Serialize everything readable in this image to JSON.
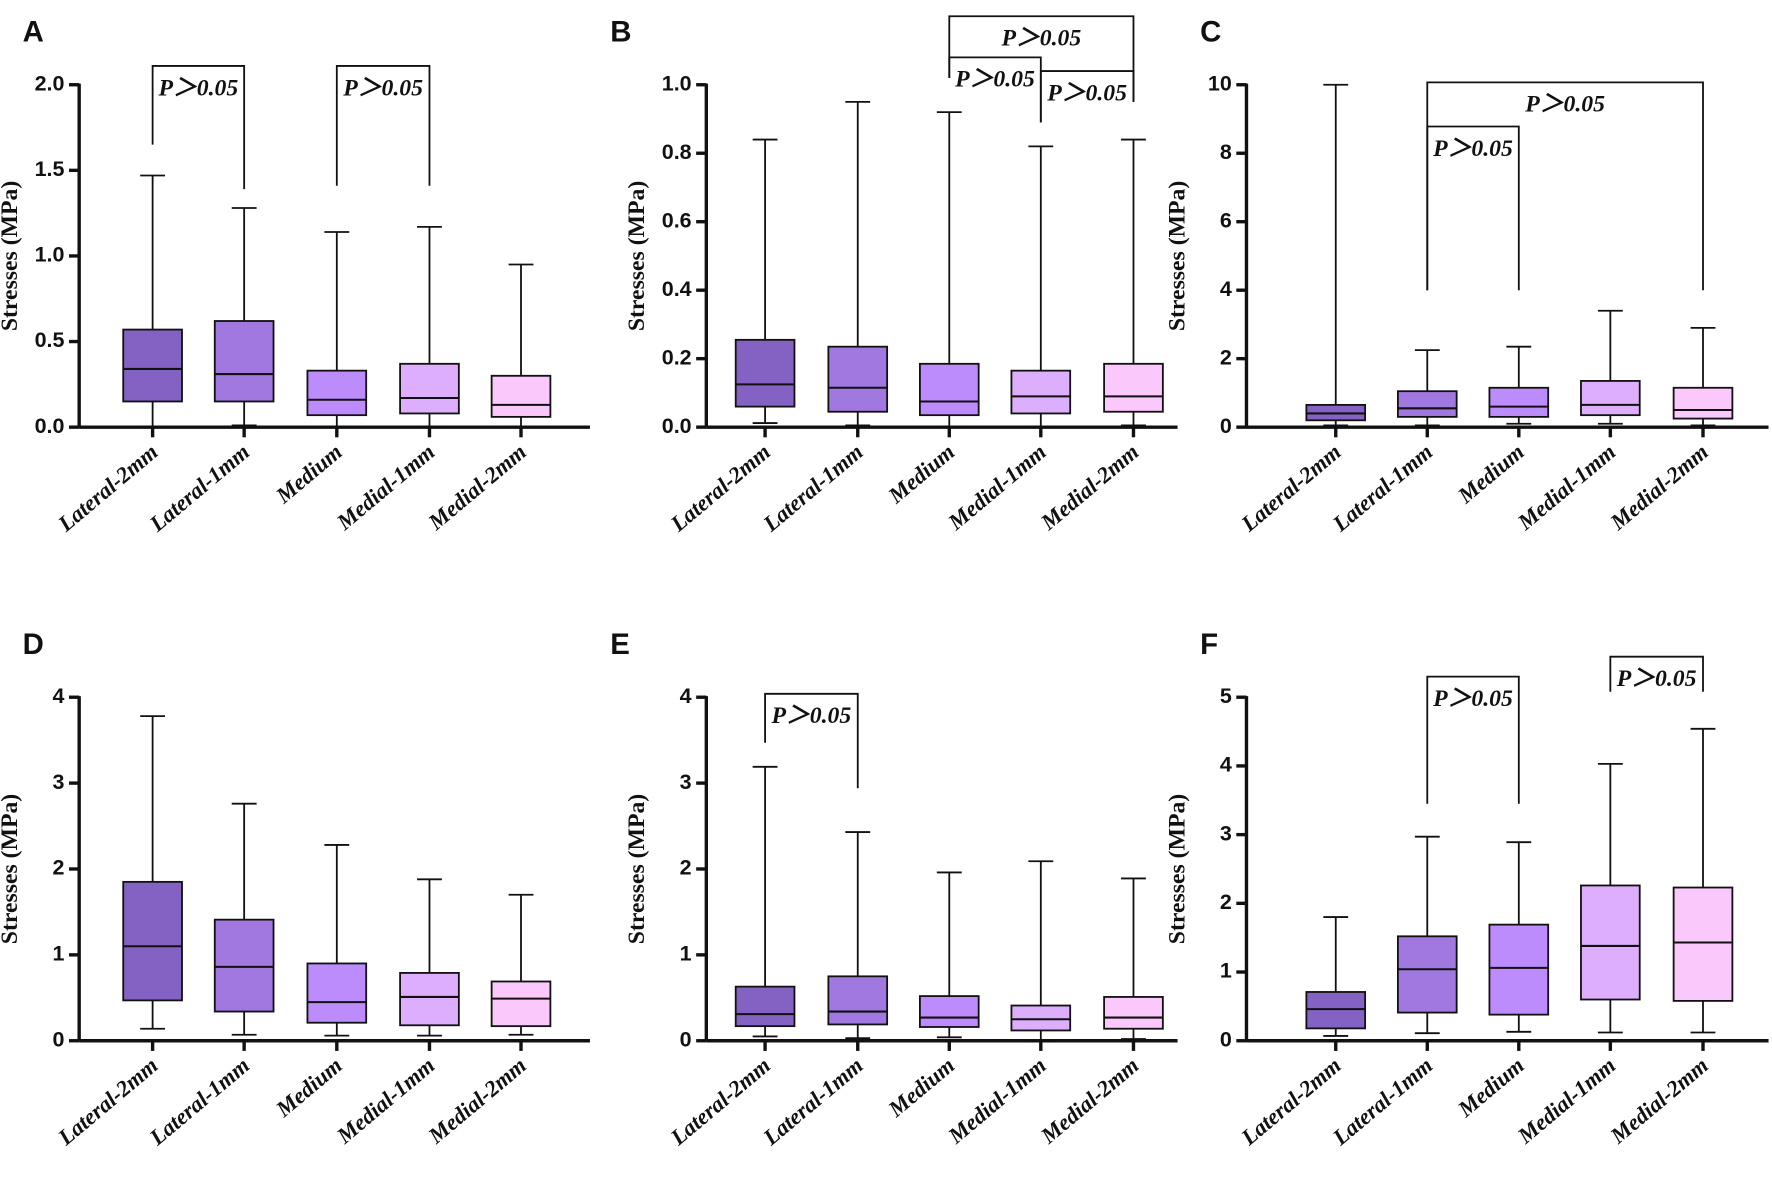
{
  "colors": [
    "#8462c4",
    "#a078e0",
    "#bd8cfc",
    "#dcaefc",
    "#fbc8fb"
  ],
  "chart_data": [
    {
      "type": "box",
      "panel": "A",
      "ylabel": "Stresses (MPa)",
      "ylim": [
        0,
        2.0
      ],
      "ticks": [
        "0.0",
        "0.5",
        "1.0",
        "1.5",
        "2.0"
      ],
      "tick_values": [
        0,
        0.5,
        1,
        1.5,
        2
      ],
      "categories": [
        "Lateral-2mm",
        "Lateral-1mm",
        "Medium",
        "Medial-1mm",
        "Medial-2mm"
      ],
      "boxes": [
        {
          "min": 0.0,
          "q1": 0.15,
          "median": 0.34,
          "q3": 0.57,
          "max": 1.47
        },
        {
          "min": 0.01,
          "q1": 0.15,
          "median": 0.31,
          "q3": 0.62,
          "max": 1.28
        },
        {
          "min": 0.0,
          "q1": 0.07,
          "median": 0.16,
          "q3": 0.33,
          "max": 1.14
        },
        {
          "min": 0.0,
          "q1": 0.08,
          "median": 0.17,
          "q3": 0.37,
          "max": 1.17
        },
        {
          "min": 0.0,
          "q1": 0.06,
          "median": 0.13,
          "q3": 0.3,
          "max": 0.95
        }
      ],
      "brackets": [
        {
          "from": 0,
          "to": 1,
          "label": "P＞0.05",
          "top": 2.11,
          "left_end": 1.65,
          "right_end": 1.39
        },
        {
          "from": 2,
          "to": 3,
          "label": "P＞0.05",
          "top": 2.11,
          "left_end": 1.41,
          "right_end": 1.41
        }
      ]
    },
    {
      "type": "box",
      "panel": "B",
      "ylabel": "Stresses (MPa)",
      "ylim": [
        0,
        1.0
      ],
      "ticks": [
        "0.0",
        "0.2",
        "0.4",
        "0.6",
        "0.8",
        "1.0"
      ],
      "tick_values": [
        0,
        0.2,
        0.4,
        0.6,
        0.8,
        1.0
      ],
      "categories": [
        "Lateral-2mm",
        "Lateral-1mm",
        "Medium",
        "Medial-1mm",
        "Medial-2mm"
      ],
      "boxes": [
        {
          "min": 0.012,
          "q1": 0.06,
          "median": 0.125,
          "q3": 0.255,
          "max": 0.84
        },
        {
          "min": 0.005,
          "q1": 0.045,
          "median": 0.115,
          "q3": 0.235,
          "max": 0.95
        },
        {
          "min": 0.0,
          "q1": 0.035,
          "median": 0.075,
          "q3": 0.185,
          "max": 0.92
        },
        {
          "min": 0.0,
          "q1": 0.04,
          "median": 0.09,
          "q3": 0.165,
          "max": 0.82
        },
        {
          "min": 0.005,
          "q1": 0.045,
          "median": 0.09,
          "q3": 0.185,
          "max": 0.84
        }
      ],
      "brackets": [
        {
          "from": 2,
          "to": 4,
          "label": "P＞0.05",
          "top": 1.2,
          "left_end": 1.02,
          "right_end": 0.95
        },
        {
          "from": 2,
          "to": 3,
          "label": "P＞0.05",
          "top": 1.08,
          "left_end": 1.02,
          "right_end": 0.89
        },
        {
          "from": 3,
          "to": 4,
          "label": "P＞0.05",
          "top": 1.04,
          "left_end": 0.89,
          "right_end": 0.95
        }
      ]
    },
    {
      "type": "box",
      "panel": "C",
      "ylabel": "Stresses (MPa)",
      "ylim": [
        0,
        10
      ],
      "ticks": [
        "0",
        "2",
        "4",
        "6",
        "8",
        "10"
      ],
      "tick_values": [
        0,
        2,
        4,
        6,
        8,
        10
      ],
      "categories": [
        "Lateral-2mm",
        "Lateral-1mm",
        "Medium",
        "Medial-1mm",
        "Medial-2mm"
      ],
      "boxes": [
        {
          "min": 0.05,
          "q1": 0.2,
          "median": 0.4,
          "q3": 0.65,
          "max": 10.0
        },
        {
          "min": 0.05,
          "q1": 0.3,
          "median": 0.55,
          "q3": 1.05,
          "max": 2.25
        },
        {
          "min": 0.1,
          "q1": 0.3,
          "median": 0.6,
          "q3": 1.15,
          "max": 2.35
        },
        {
          "min": 0.1,
          "q1": 0.35,
          "median": 0.65,
          "q3": 1.35,
          "max": 3.4
        },
        {
          "min": 0.05,
          "q1": 0.25,
          "median": 0.5,
          "q3": 1.15,
          "max": 2.9
        }
      ],
      "brackets": [
        {
          "from": 1,
          "to": 4,
          "label": "P＞0.05",
          "top": 10.07,
          "left_end": 4.0,
          "right_end": 4.0
        },
        {
          "from": 1,
          "to": 2,
          "label": "P＞0.05",
          "top": 8.78,
          "left_end": 4.0,
          "right_end": 4.0
        }
      ]
    },
    {
      "type": "box",
      "panel": "D",
      "ylabel": "Stresses (MPa)",
      "ylim": [
        0,
        4
      ],
      "ticks": [
        "0",
        "1",
        "2",
        "3",
        "4"
      ],
      "tick_values": [
        0,
        1,
        2,
        3,
        4
      ],
      "categories": [
        "Lateral-2mm",
        "Lateral-1mm",
        "Medium",
        "Medial-1mm",
        "Medial-2mm"
      ],
      "boxes": [
        {
          "min": 0.14,
          "q1": 0.47,
          "median": 1.1,
          "q3": 1.85,
          "max": 3.78
        },
        {
          "min": 0.07,
          "q1": 0.34,
          "median": 0.86,
          "q3": 1.41,
          "max": 2.76
        },
        {
          "min": 0.06,
          "q1": 0.21,
          "median": 0.45,
          "q3": 0.9,
          "max": 2.28
        },
        {
          "min": 0.06,
          "q1": 0.18,
          "median": 0.51,
          "q3": 0.79,
          "max": 1.88
        },
        {
          "min": 0.07,
          "q1": 0.17,
          "median": 0.49,
          "q3": 0.69,
          "max": 1.7
        }
      ],
      "brackets": []
    },
    {
      "type": "box",
      "panel": "E",
      "ylabel": "Stresses (MPa)",
      "ylim": [
        0,
        4
      ],
      "ticks": [
        "0",
        "1",
        "2",
        "3",
        "4"
      ],
      "tick_values": [
        0,
        1,
        2,
        3,
        4
      ],
      "categories": [
        "Lateral-2mm",
        "Lateral-1mm",
        "Medium",
        "Medial-1mm",
        "Medial-2mm"
      ],
      "boxes": [
        {
          "min": 0.05,
          "q1": 0.17,
          "median": 0.31,
          "q3": 0.63,
          "max": 3.19
        },
        {
          "min": 0.03,
          "q1": 0.19,
          "median": 0.34,
          "q3": 0.75,
          "max": 2.43
        },
        {
          "min": 0.04,
          "q1": 0.16,
          "median": 0.27,
          "q3": 0.52,
          "max": 1.96
        },
        {
          "min": 0.01,
          "q1": 0.12,
          "median": 0.25,
          "q3": 0.41,
          "max": 2.09
        },
        {
          "min": 0.02,
          "q1": 0.14,
          "median": 0.27,
          "q3": 0.51,
          "max": 1.89
        }
      ],
      "brackets": [
        {
          "from": 0,
          "to": 1,
          "label": "P＞0.05",
          "top": 4.04,
          "left_end": 3.47,
          "right_end": 2.94
        }
      ]
    },
    {
      "type": "box",
      "panel": "F",
      "ylabel": "Stresses (MPa)",
      "ylim": [
        0,
        5
      ],
      "ticks": [
        "0",
        "1",
        "2",
        "3",
        "4",
        "5"
      ],
      "tick_values": [
        0,
        1,
        2,
        3,
        4,
        5
      ],
      "categories": [
        "Lateral-2mm",
        "Lateral-1mm",
        "Medium",
        "Medial-1mm",
        "Medial-2mm"
      ],
      "boxes": [
        {
          "min": 0.07,
          "q1": 0.18,
          "median": 0.46,
          "q3": 0.71,
          "max": 1.8
        },
        {
          "min": 0.11,
          "q1": 0.41,
          "median": 1.04,
          "q3": 1.52,
          "max": 2.97
        },
        {
          "min": 0.13,
          "q1": 0.38,
          "median": 1.06,
          "q3": 1.69,
          "max": 2.89
        },
        {
          "min": 0.12,
          "q1": 0.6,
          "median": 1.38,
          "q3": 2.26,
          "max": 4.03
        },
        {
          "min": 0.12,
          "q1": 0.58,
          "median": 1.43,
          "q3": 2.23,
          "max": 4.54
        }
      ],
      "brackets": [
        {
          "from": 1,
          "to": 2,
          "label": "P＞0.05",
          "top": 5.3,
          "left_end": 3.45,
          "right_end": 3.45
        },
        {
          "from": 3,
          "to": 4,
          "label": "P＞0.05",
          "top": 5.59,
          "left_end": 5.08,
          "right_end": 5.08
        }
      ]
    }
  ]
}
